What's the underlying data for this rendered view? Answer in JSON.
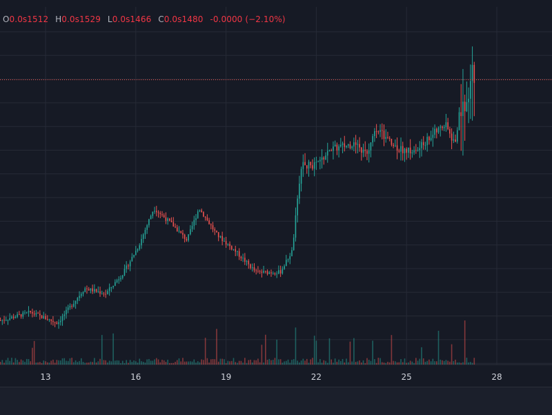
{
  "legend": {
    "open_key": "O",
    "open": "0.0s1512",
    "high_key": "H",
    "high": "0.0s1529",
    "low_key": "L",
    "low": "0.0s1466",
    "close_key": "C",
    "close": "0.0s1480",
    "change": "-0.0000 (−2.10%)"
  },
  "colors": {
    "background": "#161a25",
    "grid": "#262a36",
    "up": "#26a69a",
    "down": "#ef5350",
    "axis_text": "#d1d4dc",
    "price_line": "#ef5350"
  },
  "chart_data": {
    "type": "candlestick",
    "x_ticks": [
      "13",
      "16",
      "19",
      "22",
      "25",
      "28"
    ],
    "x_range_days": [
      11.5,
      30.1
    ],
    "price_units": "arbitrary (right axis not visible)",
    "last_price_level": 880,
    "grid": true,
    "volume_panel": true,
    "price_path": [
      {
        "day": 11.5,
        "price": 430
      },
      {
        "day": 12.5,
        "price": 445
      },
      {
        "day": 13.4,
        "price": 425
      },
      {
        "day": 14.3,
        "price": 490
      },
      {
        "day": 15.0,
        "price": 480
      },
      {
        "day": 15.6,
        "price": 520
      },
      {
        "day": 16.1,
        "price": 570
      },
      {
        "day": 16.6,
        "price": 640
      },
      {
        "day": 17.2,
        "price": 610
      },
      {
        "day": 17.7,
        "price": 580
      },
      {
        "day": 18.1,
        "price": 640
      },
      {
        "day": 18.7,
        "price": 590
      },
      {
        "day": 19.3,
        "price": 560
      },
      {
        "day": 20.0,
        "price": 520
      },
      {
        "day": 20.8,
        "price": 520
      },
      {
        "day": 21.2,
        "price": 560
      },
      {
        "day": 21.5,
        "price": 720
      },
      {
        "day": 22.0,
        "price": 720
      },
      {
        "day": 22.5,
        "price": 750
      },
      {
        "day": 23.2,
        "price": 760
      },
      {
        "day": 23.7,
        "price": 740
      },
      {
        "day": 24.0,
        "price": 790
      },
      {
        "day": 24.5,
        "price": 760
      },
      {
        "day": 24.8,
        "price": 750
      },
      {
        "day": 25.3,
        "price": 745
      },
      {
        "day": 25.9,
        "price": 780
      },
      {
        "day": 26.3,
        "price": 795
      },
      {
        "day": 26.6,
        "price": 760
      },
      {
        "day": 26.8,
        "price": 830
      },
      {
        "day": 27.0,
        "price": 840
      },
      {
        "day": 27.2,
        "price": 900
      },
      {
        "day": 27.3,
        "price": 880
      }
    ]
  }
}
